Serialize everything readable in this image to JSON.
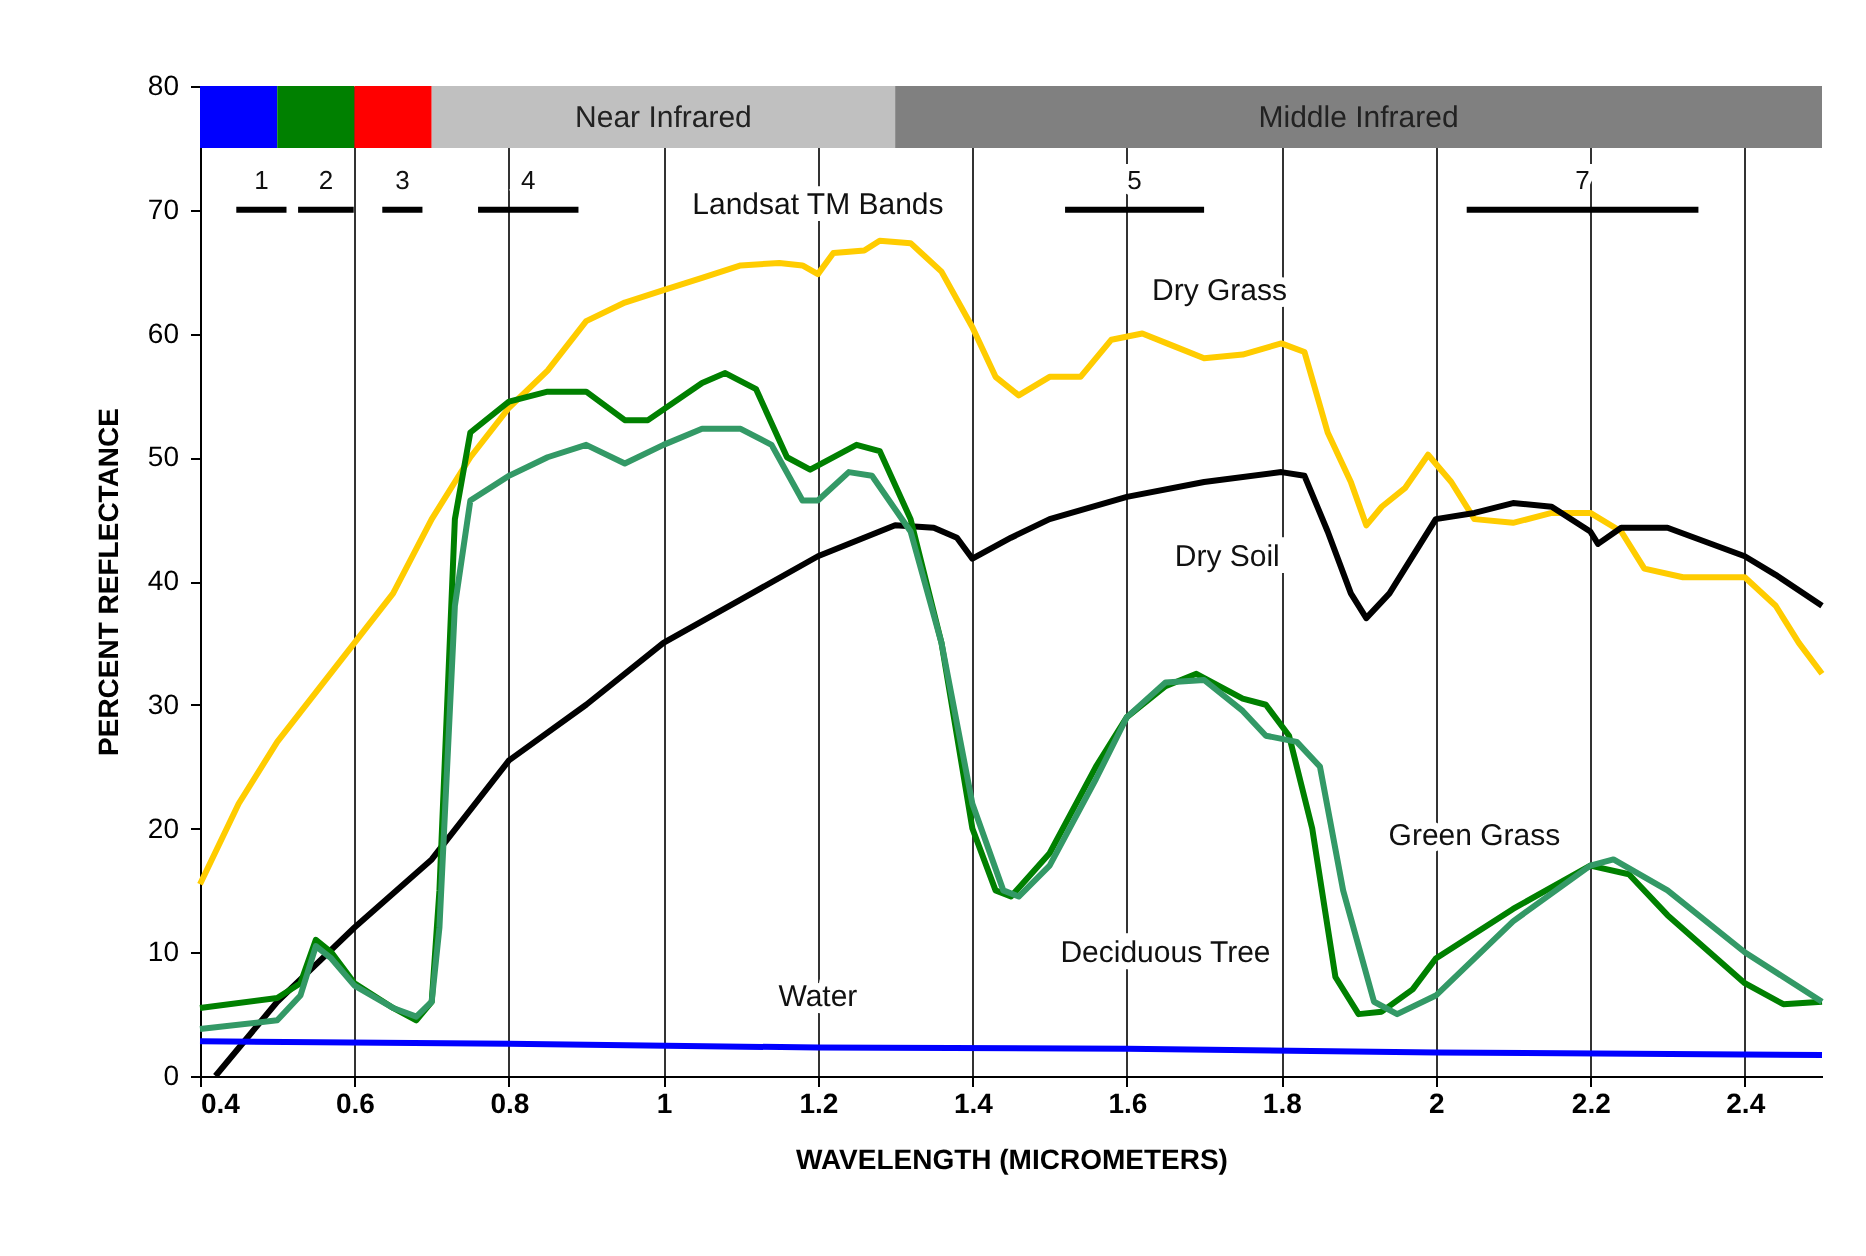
{
  "chart_data": {
    "type": "line",
    "xlabel": "WAVELENGTH (MICROMETERS)",
    "ylabel": "PERCENT REFLECTANCE",
    "xlim": [
      0.4,
      2.5
    ],
    "xticks": [
      0.4,
      0.6,
      0.8,
      1,
      1.2,
      1.4,
      1.6,
      1.8,
      2,
      2.2,
      2.4
    ],
    "ylim": [
      0,
      80
    ],
    "yticks": [
      0,
      10,
      20,
      30,
      40,
      50,
      60,
      70,
      80
    ],
    "grid": "x",
    "marker": "none",
    "line_style": "solid",
    "annotations": [
      "Landsat TM Bands"
    ],
    "bands": [
      {
        "axis": "x",
        "from": 0.4,
        "to": 0.5,
        "color": "#0000ff",
        "label": null
      },
      {
        "axis": "x",
        "from": 0.5,
        "to": 0.6,
        "color": "#008000",
        "label": null
      },
      {
        "axis": "x",
        "from": 0.6,
        "to": 0.7,
        "color": "#ff0000",
        "label": null
      },
      {
        "axis": "x",
        "from": 0.7,
        "to": 1.3,
        "color": "#c0c0c0",
        "label": "Near Infrared"
      },
      {
        "axis": "x",
        "from": 1.3,
        "to": 2.5,
        "color": "#808080",
        "label": "Middle Infrared"
      }
    ],
    "series": [
      {
        "name": "Dry Grass",
        "color": "#ffcc00",
        "x": [
          0.4,
          0.45,
          0.5,
          0.55,
          0.6,
          0.65,
          0.7,
          0.75,
          0.8,
          0.85,
          0.9,
          0.95,
          1.0,
          1.05,
          1.1,
          1.15,
          1.18,
          1.2,
          1.22,
          1.26,
          1.28,
          1.32,
          1.36,
          1.4,
          1.43,
          1.46,
          1.5,
          1.54,
          1.58,
          1.62,
          1.66,
          1.7,
          1.75,
          1.8,
          1.83,
          1.86,
          1.89,
          1.91,
          1.93,
          1.96,
          1.99,
          2.02,
          2.05,
          2.1,
          2.15,
          2.2,
          2.24,
          2.27,
          2.32,
          2.4,
          2.44,
          2.47,
          2.5
        ],
        "values": [
          15.5,
          22,
          27,
          31,
          35,
          39,
          45,
          50,
          54,
          57,
          61,
          62.5,
          63.5,
          64.5,
          65.5,
          65.7,
          65.5,
          64.8,
          66.5,
          66.7,
          67.5,
          67.3,
          65,
          60.5,
          56.5,
          55,
          56.5,
          56.5,
          59.5,
          60,
          59,
          58,
          58.3,
          59.2,
          58.5,
          52,
          48,
          44.5,
          46,
          47.5,
          50.2,
          48,
          45,
          44.7,
          45.5,
          45.5,
          44,
          41,
          40.3,
          40.3,
          38,
          35,
          32.5
        ]
      },
      {
        "name": "Dry Soil",
        "color": "#000000",
        "x": [
          0.42,
          0.5,
          0.55,
          0.6,
          0.7,
          0.8,
          0.9,
          1.0,
          1.1,
          1.2,
          1.3,
          1.35,
          1.38,
          1.4,
          1.45,
          1.5,
          1.6,
          1.7,
          1.8,
          1.83,
          1.86,
          1.89,
          1.91,
          1.94,
          1.98,
          2.0,
          2.05,
          2.1,
          2.15,
          2.2,
          2.21,
          2.24,
          2.3,
          2.4,
          2.44,
          2.5
        ],
        "values": [
          0,
          6,
          9,
          12,
          17.5,
          25.5,
          30,
          35,
          38.5,
          42,
          44.5,
          44.3,
          43.5,
          41.8,
          43.5,
          45,
          46.8,
          48,
          48.8,
          48.5,
          44,
          39,
          37,
          39,
          43,
          45,
          45.5,
          46.3,
          46,
          44,
          43,
          44.3,
          44.3,
          42,
          40.5,
          38
        ]
      },
      {
        "name": "Green Grass",
        "color": "#008000",
        "x": [
          0.4,
          0.5,
          0.53,
          0.55,
          0.57,
          0.6,
          0.65,
          0.68,
          0.7,
          0.71,
          0.72,
          0.73,
          0.75,
          0.8,
          0.85,
          0.9,
          0.95,
          0.98,
          1.05,
          1.08,
          1.12,
          1.16,
          1.19,
          1.25,
          1.28,
          1.32,
          1.36,
          1.4,
          1.43,
          1.45,
          1.5,
          1.56,
          1.6,
          1.65,
          1.69,
          1.75,
          1.78,
          1.81,
          1.84,
          1.87,
          1.9,
          1.93,
          1.97,
          2.0,
          2.1,
          2.2,
          2.25,
          2.3,
          2.4,
          2.45,
          2.5
        ],
        "values": [
          5.5,
          6.3,
          7.5,
          11,
          10,
          7.5,
          5.5,
          4.5,
          6,
          15,
          30,
          45,
          52,
          54.5,
          55.3,
          55.3,
          53,
          53,
          56,
          56.8,
          55.5,
          50,
          49,
          51,
          50.5,
          45,
          35,
          20,
          15,
          14.5,
          18,
          25,
          29,
          31.5,
          32.5,
          30.5,
          30,
          27.5,
          20,
          8,
          5,
          5.2,
          7,
          9.5,
          13.5,
          17,
          16.3,
          13,
          7.5,
          5.8,
          6
        ]
      },
      {
        "name": "Deciduous Tree",
        "color": "#339966",
        "x": [
          0.4,
          0.5,
          0.53,
          0.55,
          0.57,
          0.6,
          0.65,
          0.68,
          0.7,
          0.71,
          0.72,
          0.73,
          0.75,
          0.8,
          0.85,
          0.9,
          0.95,
          1.0,
          1.05,
          1.1,
          1.14,
          1.18,
          1.2,
          1.24,
          1.27,
          1.32,
          1.36,
          1.4,
          1.44,
          1.46,
          1.5,
          1.56,
          1.6,
          1.65,
          1.7,
          1.75,
          1.78,
          1.82,
          1.85,
          1.88,
          1.92,
          1.95,
          2.0,
          2.1,
          2.2,
          2.23,
          2.3,
          2.4,
          2.45,
          2.5
        ],
        "values": [
          3.8,
          4.5,
          6.5,
          10.5,
          9.5,
          7.3,
          5.5,
          4.8,
          6,
          12,
          25,
          38,
          46.5,
          48.5,
          50,
          51,
          49.5,
          51,
          52.3,
          52.3,
          51,
          46.5,
          46.5,
          48.8,
          48.5,
          44,
          35,
          22,
          15,
          14.5,
          17,
          24,
          29,
          31.8,
          32,
          29.5,
          27.5,
          27,
          25,
          15,
          6,
          5,
          6.5,
          12.5,
          17,
          17.5,
          15,
          10,
          8,
          6
        ]
      },
      {
        "name": "Water",
        "color": "#0000ff",
        "x": [
          0.4,
          0.8,
          1.2,
          1.6,
          2.0,
          2.5
        ],
        "values": [
          2.8,
          2.6,
          2.3,
          2.2,
          1.9,
          1.7
        ]
      },
      {
        "name": "1",
        "color": "#000000",
        "x": [
          0.447,
          0.512
        ],
        "values": [
          70,
          70
        ]
      },
      {
        "name": "2",
        "color": "#000000",
        "x": [
          0.527,
          0.599
        ],
        "values": [
          70,
          70
        ]
      },
      {
        "name": "3",
        "color": "#000000",
        "x": [
          0.636,
          0.688
        ],
        "values": [
          70,
          70
        ]
      },
      {
        "name": "4",
        "color": "#000000",
        "x": [
          0.76,
          0.89
        ],
        "values": [
          70,
          70
        ]
      },
      {
        "name": "5",
        "color": "#000000",
        "x": [
          1.52,
          1.7
        ],
        "values": [
          70,
          70
        ]
      },
      {
        "name": "7",
        "color": "#000000",
        "x": [
          2.04,
          2.34
        ],
        "values": [
          70,
          70
        ]
      }
    ]
  }
}
